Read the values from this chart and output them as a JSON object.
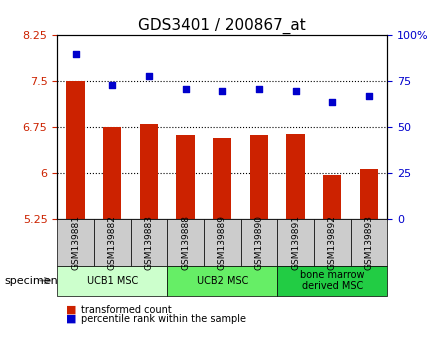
{
  "title": "GDS3401 / 200867_at",
  "categories": [
    "GSM139881",
    "GSM139882",
    "GSM139883",
    "GSM139888",
    "GSM139889",
    "GSM139890",
    "GSM139891",
    "GSM139892",
    "GSM139893"
  ],
  "bar_values": [
    7.5,
    6.75,
    6.8,
    6.62,
    6.58,
    6.62,
    6.65,
    5.97,
    6.08
  ],
  "scatter_values": [
    90,
    73,
    78,
    71,
    70,
    71,
    70,
    64,
    67
  ],
  "bar_color": "#cc2200",
  "scatter_color": "#0000cc",
  "ylim_left": [
    5.25,
    8.25
  ],
  "ylim_right": [
    0,
    100
  ],
  "yticks_left": [
    5.25,
    6.0,
    6.75,
    7.5,
    8.25
  ],
  "ytick_labels_left": [
    "5.25",
    "6",
    "6.75",
    "7.5",
    "8.25"
  ],
  "yticks_right": [
    0,
    25,
    50,
    75,
    100
  ],
  "ytick_labels_right": [
    "0",
    "25",
    "50",
    "75",
    "100%"
  ],
  "hlines": [
    6.0,
    6.75,
    7.5
  ],
  "groups": [
    {
      "label": "UCB1 MSC",
      "start": 0,
      "end": 3,
      "color": "#ccffcc"
    },
    {
      "label": "UCB2 MSC",
      "start": 3,
      "end": 6,
      "color": "#66ee66"
    },
    {
      "label": "bone marrow\nderived MSC",
      "start": 6,
      "end": 9,
      "color": "#22cc44"
    }
  ],
  "specimen_label": "specimen",
  "legend_bar_label": "transformed count",
  "legend_scatter_label": "percentile rank within the sample",
  "base_value": 5.25
}
